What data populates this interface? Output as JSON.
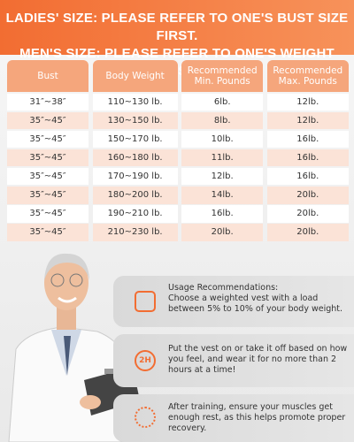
{
  "header": {
    "lines": [
      "LADIES' SIZE: PLEASE REFER TO ONE'S BUST SIZE FIRST.",
      "MEN'S SIZE: PLEASE REFER TO ONE'S WEIGHT FIRST."
    ]
  },
  "table": {
    "columns": [
      "Bust",
      "Body Weight",
      "Recommended Min. Pounds",
      "Recommended Max. Pounds"
    ],
    "rows": [
      [
        "31″~38″",
        "110~130 lb.",
        "6lb.",
        "12lb."
      ],
      [
        "35″~45″",
        "130~150 lb.",
        "8lb.",
        "12lb."
      ],
      [
        "35″~45″",
        "150~170 lb.",
        "10lb.",
        "16lb."
      ],
      [
        "35″~45″",
        "160~180 lb.",
        "11lb.",
        "16lb."
      ],
      [
        "35″~45″",
        "170~190 lb.",
        "12lb.",
        "16lb."
      ],
      [
        "35″~45″",
        "180~200 lb.",
        "14lb.",
        "20lb."
      ],
      [
        "35″~45″",
        "190~210 lb.",
        "16lb.",
        "20lb."
      ],
      [
        "35″~45″",
        "210~230 lb.",
        "20lb.",
        "20lb."
      ]
    ]
  },
  "tips": [
    {
      "title": "Usage Recommendations:",
      "text": "Choose a weighted vest with a load between 5% to 10% of your body weight."
    },
    {
      "icon_label": "2H",
      "text": "Put the vest on or take it off based on how you feel, and wear it for no more than 2 hours at a time!"
    },
    {
      "text": "After training, ensure your muscles get enough rest, as this helps promote proper recovery."
    }
  ]
}
